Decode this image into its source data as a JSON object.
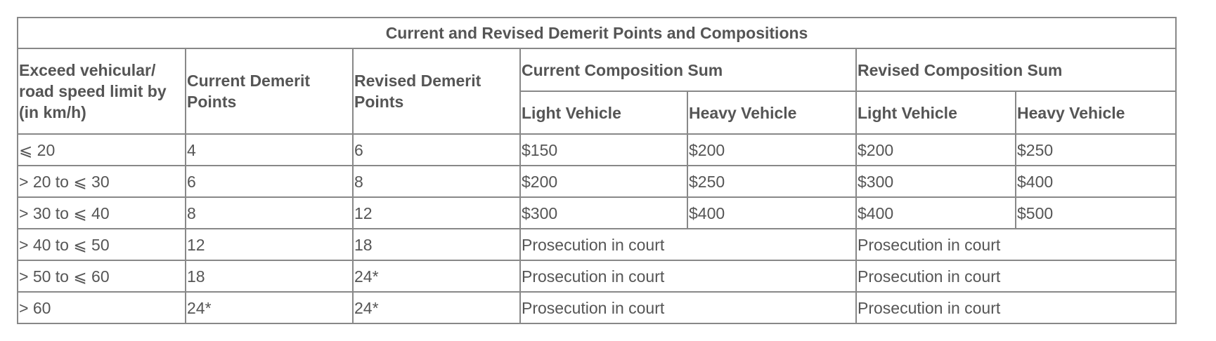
{
  "table": {
    "title": "Current and Revised Demerit Points and Compositions",
    "headers": {
      "speed": "Exceed vehicular/ road speed limit by (in km/h)",
      "current_points": "Current Demerit Points",
      "revised_points": "Revised Demerit Points",
      "current_sum": "Current Composition Sum",
      "revised_sum": "Revised Composition Sum",
      "current_light": "Light Vehicle",
      "current_heavy": "Heavy Vehicle",
      "revised_light": "Light Vehicle",
      "revised_heavy": "Heavy Vehicle"
    },
    "rows": [
      {
        "speed": "⩽ 20",
        "current": "4",
        "revised": "6",
        "cur_light": "$150",
        "cur_heavy": "$200",
        "rev_light": "$200",
        "rev_heavy": "$250"
      },
      {
        "speed": "> 20 to ⩽ 30",
        "current": "6",
        "revised": "8",
        "cur_light": "$200",
        "cur_heavy": "$250",
        "rev_light": "$300",
        "rev_heavy": "$400"
      },
      {
        "speed": "> 30 to ⩽ 40",
        "current": "8",
        "revised": "12",
        "cur_light": "$300",
        "cur_heavy": "$400",
        "rev_light": "$400",
        "rev_heavy": "$500"
      },
      {
        "speed": "> 40 to ⩽ 50",
        "current": "12",
        "revised": "18",
        "cur_sum": "Prosecution in court",
        "rev_sum": "Prosecution in court"
      },
      {
        "speed": "> 50 to ⩽ 60",
        "current": "18",
        "revised": "24*",
        "cur_sum": "Prosecution in court",
        "rev_sum": "Prosecution in court"
      },
      {
        "speed": "> 60",
        "current": "24*",
        "revised": "24*",
        "cur_sum": "Prosecution in court",
        "rev_sum": "Prosecution in court"
      }
    ]
  }
}
